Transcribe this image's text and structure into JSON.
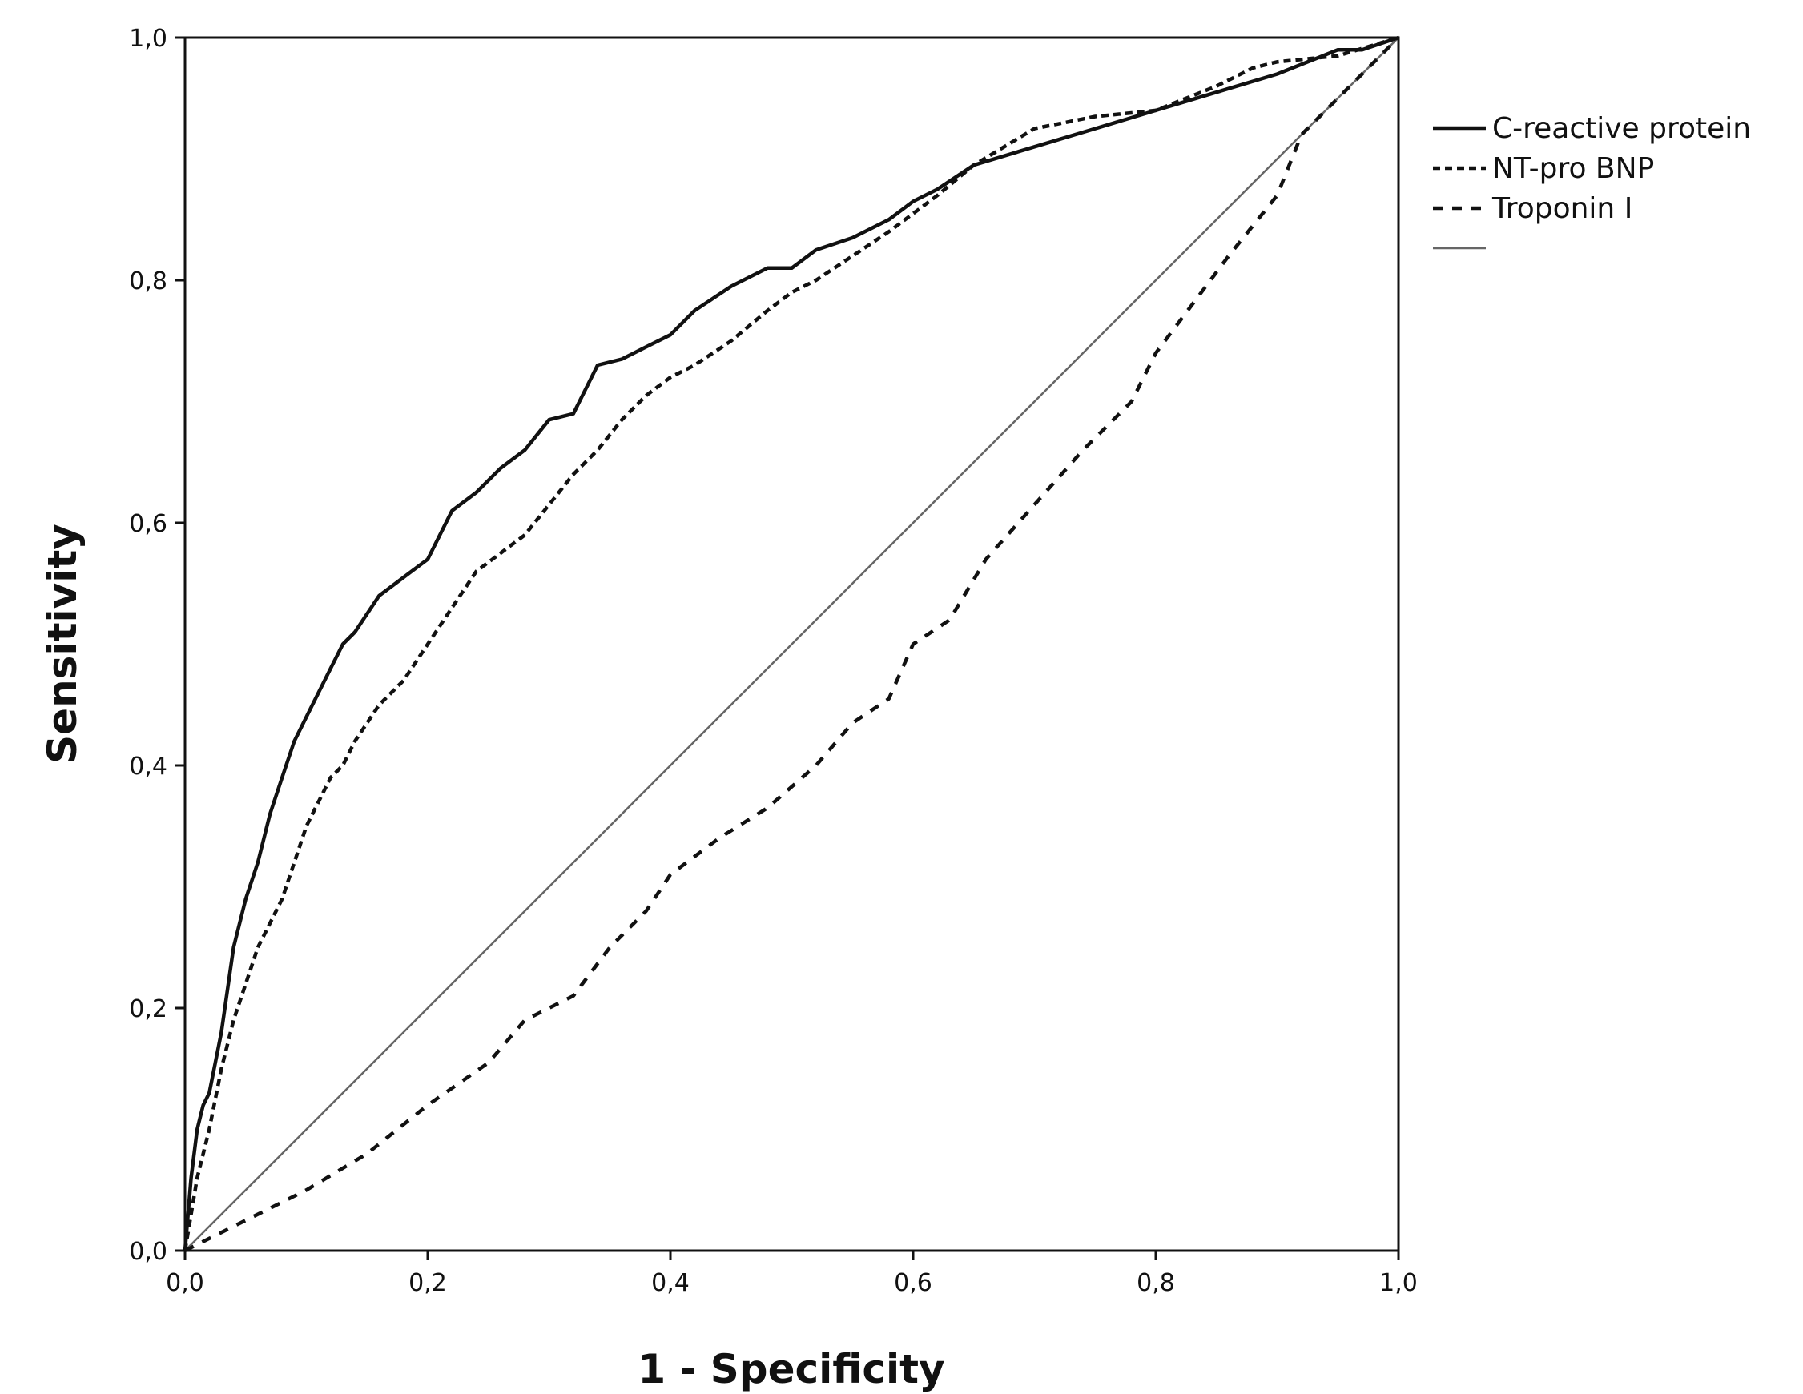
{
  "chart_data": {
    "type": "line",
    "title": "",
    "xlabel": "1 - Specificity",
    "ylabel": "Sensitivity",
    "xlim": [
      0,
      1
    ],
    "ylim": [
      0,
      1
    ],
    "xticks": [
      0,
      0.2,
      0.4,
      0.6,
      0.8,
      1.0
    ],
    "yticks": [
      0,
      0.2,
      0.4,
      0.6,
      0.8,
      1.0
    ],
    "xtick_labels": [
      "0,0",
      "0,2",
      "0,4",
      "0,6",
      "0,8",
      "1,0"
    ],
    "ytick_labels": [
      "0,0",
      "0,2",
      "0,4",
      "0,6",
      "0,8",
      "1,0"
    ],
    "legend_position": "right",
    "series": [
      {
        "name": "C-reactive protein",
        "style": "solid",
        "color": "#111111",
        "x": [
          0,
          0.005,
          0.01,
          0.015,
          0.02,
          0.03,
          0.04,
          0.05,
          0.06,
          0.07,
          0.08,
          0.09,
          0.1,
          0.11,
          0.12,
          0.13,
          0.14,
          0.16,
          0.18,
          0.2,
          0.22,
          0.24,
          0.26,
          0.28,
          0.3,
          0.32,
          0.34,
          0.36,
          0.38,
          0.4,
          0.42,
          0.45,
          0.48,
          0.5,
          0.52,
          0.55,
          0.58,
          0.6,
          0.62,
          0.65,
          0.7,
          0.75,
          0.8,
          0.85,
          0.9,
          0.95,
          0.97,
          1.0
        ],
        "y": [
          0,
          0.06,
          0.1,
          0.12,
          0.13,
          0.18,
          0.25,
          0.29,
          0.32,
          0.36,
          0.39,
          0.42,
          0.44,
          0.46,
          0.48,
          0.5,
          0.51,
          0.54,
          0.555,
          0.57,
          0.61,
          0.625,
          0.645,
          0.66,
          0.685,
          0.69,
          0.73,
          0.735,
          0.745,
          0.755,
          0.775,
          0.795,
          0.81,
          0.81,
          0.825,
          0.835,
          0.85,
          0.865,
          0.875,
          0.895,
          0.91,
          0.925,
          0.94,
          0.955,
          0.97,
          0.99,
          0.99,
          1.0
        ]
      },
      {
        "name": "NT-pro BNP",
        "style": "short-dash",
        "color": "#111111",
        "x": [
          0,
          0.01,
          0.02,
          0.03,
          0.04,
          0.05,
          0.06,
          0.07,
          0.08,
          0.09,
          0.1,
          0.11,
          0.12,
          0.13,
          0.14,
          0.16,
          0.18,
          0.2,
          0.22,
          0.24,
          0.26,
          0.28,
          0.3,
          0.32,
          0.34,
          0.36,
          0.38,
          0.4,
          0.42,
          0.45,
          0.48,
          0.5,
          0.52,
          0.55,
          0.58,
          0.6,
          0.62,
          0.65,
          0.7,
          0.75,
          0.8,
          0.85,
          0.88,
          0.9,
          0.95,
          1.0
        ],
        "y": [
          0,
          0.06,
          0.1,
          0.15,
          0.19,
          0.22,
          0.25,
          0.27,
          0.29,
          0.32,
          0.35,
          0.37,
          0.39,
          0.4,
          0.42,
          0.45,
          0.47,
          0.5,
          0.53,
          0.56,
          0.575,
          0.59,
          0.615,
          0.64,
          0.66,
          0.685,
          0.705,
          0.72,
          0.73,
          0.75,
          0.775,
          0.79,
          0.8,
          0.82,
          0.84,
          0.855,
          0.87,
          0.895,
          0.925,
          0.935,
          0.94,
          0.96,
          0.975,
          0.98,
          0.985,
          1.0
        ]
      },
      {
        "name": "Troponin I",
        "style": "long-dash",
        "color": "#111111",
        "x": [
          0,
          0.02,
          0.05,
          0.1,
          0.15,
          0.2,
          0.25,
          0.28,
          0.32,
          0.35,
          0.38,
          0.4,
          0.44,
          0.48,
          0.52,
          0.55,
          0.58,
          0.6,
          0.63,
          0.66,
          0.7,
          0.74,
          0.78,
          0.8,
          0.83,
          0.86,
          0.9,
          0.92,
          0.95,
          0.98,
          1.0
        ],
        "y": [
          0,
          0.01,
          0.025,
          0.05,
          0.08,
          0.12,
          0.155,
          0.19,
          0.21,
          0.25,
          0.28,
          0.31,
          0.34,
          0.365,
          0.4,
          0.435,
          0.455,
          0.5,
          0.52,
          0.57,
          0.615,
          0.66,
          0.7,
          0.74,
          0.78,
          0.82,
          0.87,
          0.92,
          0.95,
          0.98,
          1.0
        ]
      },
      {
        "name": "",
        "style": "reference",
        "color": "#666666",
        "x": [
          0,
          1
        ],
        "y": [
          0,
          1
        ]
      }
    ]
  }
}
